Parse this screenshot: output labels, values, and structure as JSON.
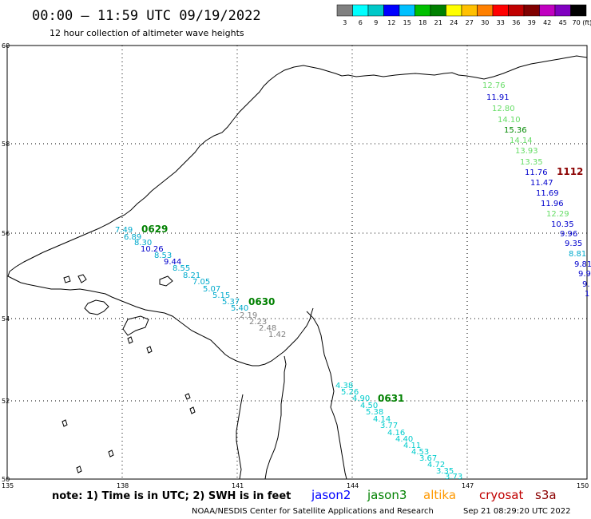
{
  "header": {
    "time_range": "00:00 – 11:59 UTC 09/19/2022",
    "subtitle": "12 hour collection of altimeter wave heights"
  },
  "color_scale": {
    "labels": [
      "3",
      "6",
      "9",
      "12",
      "15",
      "18",
      "21",
      "24",
      "27",
      "30",
      "33",
      "36",
      "39",
      "42",
      "45",
      "70 (ft)"
    ],
    "colors": [
      "#808080",
      "#00ffff",
      "#00c8c8",
      "#0000ff",
      "#00c0ff",
      "#00c000",
      "#008000",
      "#ffff00",
      "#ffc000",
      "#ff8000",
      "#ff0000",
      "#c00000",
      "#800000",
      "#c000c0",
      "#8000c0",
      "#000000"
    ]
  },
  "grid": {
    "lon_labels": [
      "135",
      "138",
      "141",
      "144",
      "147",
      "150"
    ],
    "lat_labels": [
      "60",
      "58",
      "56",
      "54",
      "52",
      "50"
    ]
  },
  "passes": [
    {
      "id": "0629",
      "color": "#008000"
    },
    {
      "id": "0630",
      "color": "#008000"
    },
    {
      "id": "0631",
      "color": "#008000"
    },
    {
      "id": "1112",
      "color": "#8b0000"
    }
  ],
  "wave_heights": {
    "east_track": [
      {
        "v": "12.76",
        "c": "#66dd66"
      },
      {
        "v": "11.91",
        "c": "#0000cc"
      },
      {
        "v": "12.80",
        "c": "#66dd66"
      },
      {
        "v": "14.10",
        "c": "#66dd66"
      },
      {
        "v": "15.36",
        "c": "#008800"
      },
      {
        "v": "14.14",
        "c": "#66dd66"
      },
      {
        "v": "13.93",
        "c": "#66dd66"
      },
      {
        "v": "13.35",
        "c": "#66dd66"
      },
      {
        "v": "11.76",
        "c": "#0000cc"
      },
      {
        "v": "11.47",
        "c": "#0000cc"
      },
      {
        "v": "11.69",
        "c": "#0000cc"
      },
      {
        "v": "11.96",
        "c": "#0000cc"
      },
      {
        "v": "12.29",
        "c": "#66dd66"
      },
      {
        "v": "10.35",
        "c": "#0000cc"
      },
      {
        "v": "9.96",
        "c": "#0000cc"
      },
      {
        "v": "9.35",
        "c": "#0000cc"
      },
      {
        "v": "8.81",
        "c": "#00aacc"
      },
      {
        "v": "9.81",
        "c": "#0000cc"
      },
      {
        "v": "9.9",
        "c": "#0000cc"
      },
      {
        "v": "9.",
        "c": "#0000cc"
      },
      {
        "v": "1",
        "c": "#0000cc"
      }
    ],
    "track_0629": [
      {
        "v": "7.49",
        "c": "#00aacc"
      },
      {
        "v": "6.89",
        "c": "#00aacc"
      },
      {
        "v": "8.30",
        "c": "#00aacc"
      },
      {
        "v": "10.26",
        "c": "#0000cc"
      },
      {
        "v": "8.53",
        "c": "#00aacc"
      },
      {
        "v": "9.44",
        "c": "#0000cc"
      },
      {
        "v": "8.55",
        "c": "#00aacc"
      },
      {
        "v": "8.21",
        "c": "#00aacc"
      },
      {
        "v": "7.05",
        "c": "#00aacc"
      },
      {
        "v": "5.07",
        "c": "#00aacc"
      },
      {
        "v": "5.15",
        "c": "#00aacc"
      },
      {
        "v": "5.37",
        "c": "#00aacc"
      },
      {
        "v": "5.40",
        "c": "#00aacc"
      }
    ],
    "track_0630": [
      {
        "v": "2.19",
        "c": "#808080"
      },
      {
        "v": "2.23",
        "c": "#808080"
      },
      {
        "v": "2.48",
        "c": "#808080"
      },
      {
        "v": "1.42",
        "c": "#808080"
      }
    ],
    "track_0631": [
      {
        "v": "4.38",
        "c": "#00cccc"
      },
      {
        "v": "5.26",
        "c": "#00cccc"
      },
      {
        "v": "4.90",
        "c": "#00cccc"
      },
      {
        "v": "4.50",
        "c": "#00cccc"
      },
      {
        "v": "5.38",
        "c": "#00cccc"
      },
      {
        "v": "4.14",
        "c": "#00cccc"
      },
      {
        "v": "3.77",
        "c": "#00cccc"
      },
      {
        "v": "4.16",
        "c": "#00cccc"
      },
      {
        "v": "4.40",
        "c": "#00cccc"
      },
      {
        "v": "4.11",
        "c": "#00cccc"
      },
      {
        "v": "4.53",
        "c": "#00cccc"
      },
      {
        "v": "3.67",
        "c": "#00cccc"
      },
      {
        "v": "4.72",
        "c": "#00cccc"
      },
      {
        "v": "3.35",
        "c": "#00cccc"
      },
      {
        "v": "3.73",
        "c": "#00cccc"
      }
    ]
  },
  "footer": {
    "note": "note: 1) Time is in UTC; 2) SWH is in feet",
    "satellites": [
      {
        "name": "jason2",
        "color": "#0000ff"
      },
      {
        "name": "jason3",
        "color": "#008000"
      },
      {
        "name": "altika",
        "color": "#ff9900"
      },
      {
        "name": "cryosat",
        "color": "#c00000"
      },
      {
        "name": "s3a",
        "color": "#8b0000"
      }
    ],
    "credit": "NOAA/NESDIS Center for Satellite Applications and Research",
    "timestamp": "Sep 21 08:29:20 UTC 2022"
  }
}
